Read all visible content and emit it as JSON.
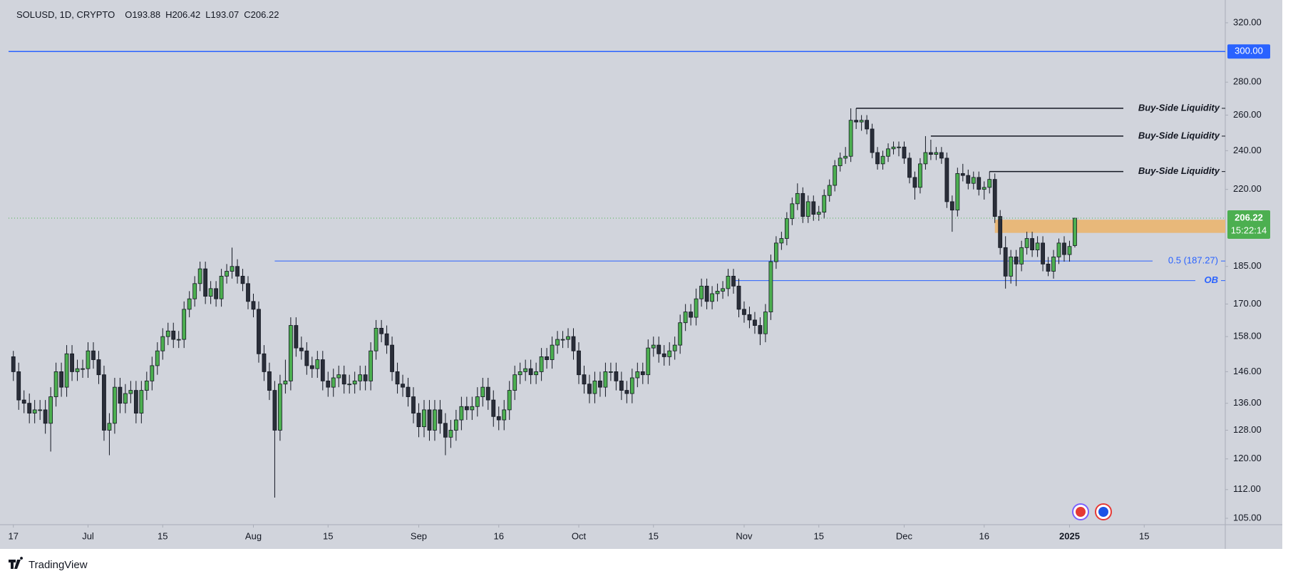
{
  "branding": "TradingView",
  "chart_data": {
    "type": "candlestick",
    "title": "SOLUSD, 1D, CRYPTO",
    "legend_prefixes": [
      "O",
      "H",
      "L",
      "C"
    ],
    "open": [
      151,
      146,
      137,
      136,
      133,
      134,
      134,
      130,
      138,
      146,
      141,
      152,
      146,
      147,
      147,
      153,
      150,
      145,
      128,
      130,
      141,
      136,
      139,
      140,
      133,
      140,
      143,
      148,
      153,
      158,
      160,
      157,
      157,
      168,
      172,
      178,
      184,
      173,
      176,
      172,
      181,
      183,
      185,
      181,
      178,
      171,
      168,
      152,
      146,
      140,
      128,
      142,
      143,
      162,
      154,
      153,
      148,
      147,
      150,
      143,
      141,
      144,
      145,
      142,
      142,
      143,
      145,
      143,
      153,
      161,
      159,
      155,
      146,
      142,
      141,
      138,
      133,
      129,
      134,
      128,
      134,
      130,
      126,
      128,
      131,
      135,
      134,
      135,
      138,
      141,
      137,
      132,
      131,
      134,
      140,
      145,
      146,
      147,
      145,
      146,
      151,
      150,
      155,
      157,
      157,
      158,
      153,
      145,
      142,
      139,
      143,
      141,
      146,
      146,
      143,
      140,
      139,
      144,
      146,
      145,
      154,
      155,
      152,
      151,
      153,
      155,
      163,
      167,
      165,
      172,
      177,
      171,
      174,
      175,
      176,
      181,
      177,
      168,
      166,
      164,
      162,
      159,
      167,
      187,
      195,
      197,
      206,
      213,
      218,
      207,
      214,
      208,
      209,
      217,
      222,
      232,
      236,
      237,
      257,
      256,
      257,
      252,
      239,
      233,
      237,
      241,
      242,
      242,
      236,
      226,
      221,
      233,
      239,
      238,
      239,
      236,
      214,
      210,
      228,
      227,
      223,
      226,
      220,
      221,
      225,
      207,
      193,
      181,
      189,
      186,
      193,
      197,
      192,
      195,
      186,
      183,
      189,
      195,
      190,
      193.88
    ],
    "high": [
      153,
      149,
      140,
      139,
      137,
      137,
      137,
      141,
      149,
      149,
      155,
      155,
      150,
      150,
      156,
      156,
      153,
      148,
      133,
      144,
      144,
      142,
      143,
      143,
      143,
      146,
      151,
      156,
      161,
      163,
      163,
      160,
      171,
      175,
      181,
      187,
      187,
      179,
      179,
      184,
      186,
      193,
      188,
      184,
      181,
      174,
      171,
      155,
      149,
      143,
      145,
      150,
      165,
      165,
      158,
      156,
      151,
      153,
      153,
      146,
      147,
      148,
      148,
      145,
      146,
      148,
      148,
      156,
      164,
      164,
      162,
      158,
      149,
      145,
      144,
      141,
      136,
      137,
      137,
      137,
      137,
      133,
      131,
      134,
      138,
      138,
      138,
      141,
      144,
      144,
      140,
      135,
      137,
      143,
      148,
      149,
      150,
      150,
      149,
      154,
      154,
      158,
      160,
      160,
      161,
      161,
      156,
      148,
      145,
      146,
      146,
      149,
      149,
      149,
      146,
      143,
      147,
      149,
      149,
      157,
      158,
      158,
      155,
      156,
      158,
      166,
      170,
      170,
      176,
      180,
      180,
      177,
      178,
      179,
      184,
      184,
      180,
      171,
      169,
      167,
      165,
      170,
      190,
      198,
      200,
      209,
      216,
      223,
      221,
      217,
      217,
      212,
      220,
      225,
      235,
      239,
      242,
      264,
      264,
      260,
      260,
      255,
      242,
      240,
      244,
      245,
      245,
      245,
      239,
      229,
      236,
      248,
      246,
      242,
      242,
      239,
      217,
      231,
      233,
      230,
      229,
      229,
      224,
      229,
      228,
      210,
      198,
      192,
      192,
      196,
      200,
      200,
      198,
      198,
      189,
      192,
      197,
      198,
      196,
      206.42
    ],
    "low": [
      143,
      134,
      133,
      130,
      130,
      131,
      127,
      122,
      135,
      138,
      138,
      143,
      143,
      144,
      144,
      147,
      142,
      125,
      121,
      127,
      133,
      133,
      136,
      130,
      130,
      137,
      140,
      145,
      150,
      155,
      154,
      154,
      154,
      165,
      169,
      175,
      170,
      170,
      169,
      169,
      178,
      180,
      178,
      175,
      168,
      165,
      149,
      143,
      137,
      110,
      125,
      139,
      140,
      151,
      150,
      145,
      144,
      144,
      140,
      138,
      138,
      141,
      139,
      139,
      139,
      140,
      140,
      140,
      150,
      156,
      152,
      143,
      139,
      138,
      135,
      130,
      126,
      126,
      125,
      125,
      127,
      121,
      123,
      125,
      128,
      131,
      131,
      132,
      135,
      134,
      129,
      128,
      128,
      131,
      137,
      142,
      143,
      142,
      142,
      143,
      147,
      147,
      152,
      154,
      154,
      150,
      142,
      139,
      136,
      136,
      138,
      138,
      143,
      140,
      137,
      136,
      136,
      141,
      142,
      142,
      151,
      149,
      148,
      148,
      150,
      152,
      160,
      162,
      162,
      169,
      168,
      168,
      171,
      172,
      173,
      174,
      165,
      163,
      161,
      159,
      155,
      156,
      164,
      184,
      192,
      194,
      203,
      210,
      204,
      204,
      205,
      205,
      206,
      214,
      219,
      229,
      233,
      234,
      252,
      251,
      249,
      236,
      230,
      230,
      234,
      238,
      237,
      233,
      223,
      215,
      218,
      230,
      235,
      235,
      233,
      211,
      200,
      207,
      224,
      220,
      220,
      217,
      215,
      218,
      204,
      190,
      176,
      178,
      177,
      183,
      190,
      189,
      189,
      183,
      181,
      180,
      186,
      187,
      187,
      193.07
    ],
    "close": [
      146,
      137,
      136,
      133,
      134,
      134,
      130,
      138,
      146,
      141,
      152,
      146,
      147,
      147,
      153,
      150,
      145,
      128,
      130,
      141,
      136,
      139,
      140,
      133,
      140,
      143,
      148,
      153,
      158,
      160,
      157,
      157,
      168,
      172,
      178,
      184,
      173,
      176,
      172,
      181,
      183,
      185,
      181,
      178,
      171,
      168,
      152,
      146,
      140,
      128,
      142,
      143,
      162,
      154,
      153,
      148,
      147,
      150,
      143,
      141,
      144,
      145,
      142,
      142,
      143,
      145,
      143,
      153,
      161,
      159,
      155,
      146,
      142,
      141,
      138,
      133,
      129,
      134,
      128,
      134,
      130,
      126,
      128,
      131,
      135,
      134,
      135,
      138,
      141,
      137,
      132,
      131,
      134,
      140,
      145,
      146,
      147,
      145,
      146,
      151,
      150,
      155,
      157,
      157,
      158,
      153,
      145,
      142,
      139,
      143,
      141,
      146,
      146,
      143,
      140,
      139,
      144,
      146,
      145,
      154,
      155,
      152,
      151,
      153,
      155,
      163,
      167,
      165,
      172,
      177,
      171,
      174,
      175,
      176,
      181,
      177,
      168,
      166,
      164,
      162,
      159,
      167,
      187,
      195,
      197,
      206,
      213,
      218,
      207,
      214,
      208,
      209,
      217,
      222,
      232,
      236,
      237,
      257,
      256,
      257,
      252,
      239,
      233,
      237,
      241,
      242,
      242,
      236,
      226,
      221,
      233,
      239,
      238,
      239,
      236,
      214,
      210,
      228,
      227,
      223,
      226,
      220,
      221,
      225,
      207,
      193,
      181,
      189,
      186,
      193,
      197,
      192,
      195,
      186,
      183,
      189,
      195,
      190,
      193.5,
      206.22
    ],
    "xlim": [
      -0.9,
      227.2
    ],
    "xticks": [
      {
        "value": 0,
        "label": "17"
      },
      {
        "value": 14,
        "label": "Jul"
      },
      {
        "value": 28,
        "label": "15"
      },
      {
        "value": 45,
        "label": "Aug"
      },
      {
        "value": 59,
        "label": "15"
      },
      {
        "value": 76,
        "label": "Sep"
      },
      {
        "value": 91,
        "label": "16"
      },
      {
        "value": 106,
        "label": "Oct"
      },
      {
        "value": 120,
        "label": "15"
      },
      {
        "value": 137,
        "label": "Nov"
      },
      {
        "value": 151,
        "label": "15"
      },
      {
        "value": 167,
        "label": "Dec"
      },
      {
        "value": 182,
        "label": "16"
      },
      {
        "value": 198,
        "label": "2025"
      },
      {
        "value": 212,
        "label": "15"
      }
    ],
    "ylim": [
      103.5,
      335.2
    ],
    "log_scale": true,
    "yticks": [
      {
        "value": 320,
        "label": "320.00"
      },
      {
        "value": 280,
        "label": "280.00"
      },
      {
        "value": 260,
        "label": "260.00"
      },
      {
        "value": 240,
        "label": "240.00"
      },
      {
        "value": 220,
        "label": "220.00"
      },
      {
        "value": 185,
        "label": "185.00"
      },
      {
        "value": 170,
        "label": "170.00"
      },
      {
        "value": 158,
        "label": "158.00"
      },
      {
        "value": 146,
        "label": "146.00"
      },
      {
        "value": 136,
        "label": "136.00"
      },
      {
        "value": 128,
        "label": "128.00"
      },
      {
        "value": 120,
        "label": "120.00"
      },
      {
        "value": 112,
        "label": "112.00"
      },
      {
        "value": 105,
        "label": "105.00"
      }
    ],
    "colors": {
      "up": "#4caf50",
      "down": "#2a2e39",
      "background": "#d1d4dc",
      "last_price": "#4caf50"
    },
    "price_lines": [
      {
        "value": 300,
        "label": "300.00",
        "color": "#2962ff"
      }
    ],
    "countdown": "15:22:14",
    "fib_level": {
      "value": 187.27,
      "label": "0.5 (187.27)",
      "start": 49,
      "color": "#2962ff"
    },
    "order_block": {
      "value": 179.2,
      "label": "OB",
      "start": 135,
      "color": "#2962ff"
    },
    "liquidity": [
      {
        "value": 264,
        "label": "Buy-Side Liquidity",
        "start": 158
      },
      {
        "value": 248,
        "label": "Buy-Side Liquidity",
        "start": 172
      },
      {
        "value": 229,
        "label": "Buy-Side Liquidity",
        "start": 183
      }
    ],
    "zone": {
      "start": 184,
      "low": 199.5,
      "high": 205.5,
      "color": "#e8b87a"
    }
  }
}
